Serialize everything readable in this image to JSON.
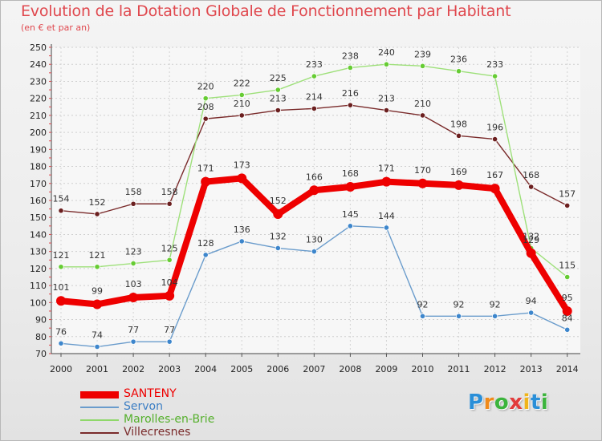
{
  "header": {
    "title": "Evolution de la Dotation Globale de Fonctionnement par Habitant",
    "subtitle": "(en € et par an)"
  },
  "chart_data": {
    "type": "line",
    "title": "Evolution de la Dotation Globale de Fonctionnement par Habitant",
    "subtitle": "(en € et par an)",
    "xlabel": "",
    "ylabel": "",
    "ylim": [
      70,
      250
    ],
    "yticks": [
      70,
      80,
      90,
      100,
      110,
      120,
      130,
      140,
      150,
      160,
      170,
      180,
      190,
      200,
      210,
      220,
      230,
      240,
      250
    ],
    "grid": true,
    "legend_position": "bottom-left",
    "x": [
      "2000",
      "2001",
      "2002",
      "2003",
      "2004",
      "2005",
      "2006",
      "2007",
      "2008",
      "2009",
      "2010",
      "2011",
      "2012",
      "2013",
      "2014"
    ],
    "series": [
      {
        "name": "Villecresnes",
        "color": "#7a2b2b",
        "marker": "#6b1f1f",
        "values": [
          154,
          152,
          158,
          158,
          208,
          210,
          213,
          214,
          216,
          213,
          210,
          198,
          196,
          168,
          157
        ]
      },
      {
        "name": "Marolles-en-Brie",
        "color": "#9ee07a",
        "marker": "#66cc33",
        "values": [
          121,
          121,
          123,
          125,
          220,
          222,
          225,
          233,
          238,
          240,
          239,
          236,
          233,
          132,
          115
        ]
      },
      {
        "name": "Servon",
        "color": "#6a9ccc",
        "marker": "#3d86cc",
        "values": [
          76,
          74,
          77,
          77,
          128,
          136,
          132,
          130,
          145,
          144,
          92,
          92,
          92,
          94,
          84
        ]
      },
      {
        "name": "SANTENY",
        "color": "#ee0000",
        "marker": "#ee0000",
        "values": [
          101,
          99,
          103,
          104,
          171,
          173,
          152,
          166,
          168,
          171,
          170,
          169,
          167,
          129,
          95
        ]
      }
    ]
  },
  "legend": {
    "items": [
      {
        "label": "SANTENY",
        "color": "#ee0000",
        "weight": 9
      },
      {
        "label": "Servon",
        "color": "#6a9ccc",
        "weight": 2
      },
      {
        "label": "Marolles-en-Brie",
        "color": "#8fd86a",
        "weight": 2
      },
      {
        "label": "Villecresnes",
        "color": "#7a2b2b",
        "weight": 2
      }
    ]
  },
  "logo": {
    "letters": [
      "P",
      "r",
      "o",
      "x",
      "i",
      "t",
      "i"
    ],
    "colors": [
      "#2a8fd8",
      "#f08a1a",
      "#3cb43c",
      "#e23c3c",
      "#f0b41a",
      "#2a8fd8",
      "#3cb43c"
    ]
  }
}
